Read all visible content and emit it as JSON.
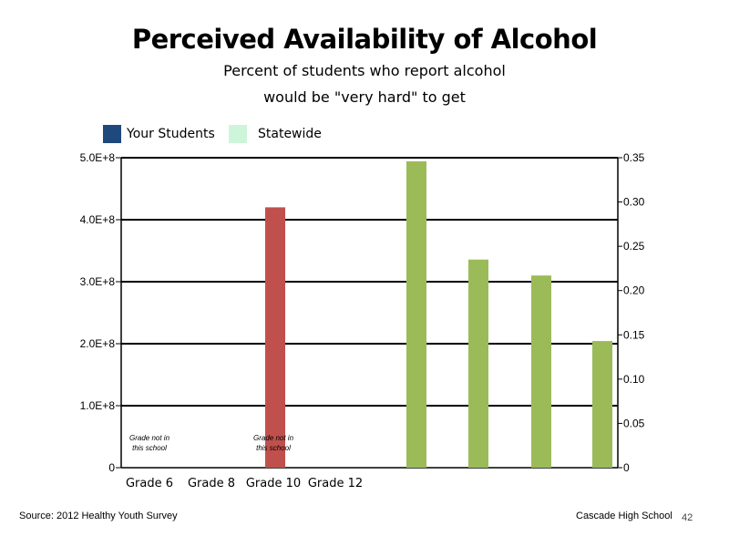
{
  "chart_data": {
    "type": "bar",
    "title": "Perceived Availability of Alcohol",
    "subtitle_line1": "Percent of students who report alcohol",
    "subtitle_line2": "would be \"very hard\" to get",
    "legend": [
      {
        "name": "Your Students",
        "color": "#1f497d"
      },
      {
        "name": "Statewide",
        "color": "#ccf5d9"
      }
    ],
    "categories": [
      "Grade 6",
      "Grade 8",
      "Grade 10",
      "Grade 12"
    ],
    "left_axis": {
      "ylim": [
        0,
        500000000
      ],
      "ticks": [
        {
          "value": 0,
          "label": "0"
        },
        {
          "value": 100000000,
          "label": "1.0E+8"
        },
        {
          "value": 200000000,
          "label": "2.0E+8"
        },
        {
          "value": 300000000,
          "label": "3.0E+8"
        },
        {
          "value": 400000000,
          "label": "4.0E+8"
        },
        {
          "value": 500000000,
          "label": "5.0E+8"
        }
      ]
    },
    "right_axis": {
      "ylim": [
        0,
        0.35
      ],
      "ticks": [
        {
          "value": 0,
          "label": "0"
        },
        {
          "value": 0.05,
          "label": "0.05"
        },
        {
          "value": 0.1,
          "label": "0.10"
        },
        {
          "value": 0.15,
          "label": "0.15"
        },
        {
          "value": 0.2,
          "label": "0.20"
        },
        {
          "value": 0.25,
          "label": "0.25"
        },
        {
          "value": 0.3,
          "label": "0.30"
        },
        {
          "value": 0.35,
          "label": "0.35"
        }
      ]
    },
    "bars": [
      {
        "name": "red-bar",
        "axis": "left",
        "value": 420000000,
        "color": "#c0504d"
      },
      {
        "name": "green-bar-1",
        "axis": "right",
        "value": 0.346,
        "color": "#9bbb59"
      },
      {
        "name": "green-bar-2",
        "axis": "right",
        "value": 0.235,
        "color": "#9bbb59"
      },
      {
        "name": "green-bar-3",
        "axis": "right",
        "value": 0.217,
        "color": "#9bbb59"
      },
      {
        "name": "green-bar-4",
        "axis": "right",
        "value": 0.143,
        "color": "#9bbb59"
      }
    ],
    "annotations": [
      {
        "line1": "Grade not in",
        "line2": "this school",
        "category": "Grade 6"
      },
      {
        "line1": "Grade not in",
        "line2": "this school",
        "category": "Grade 10"
      }
    ],
    "grid": true
  },
  "footer": {
    "source": "Source: 2012 Healthy Youth Survey",
    "school": "Cascade High School",
    "page": "42"
  }
}
